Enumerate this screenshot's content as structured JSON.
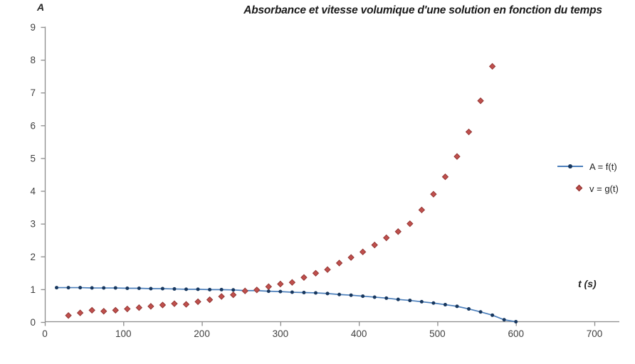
{
  "header": {
    "title": "Absorbance et vitesse volumique d'une solution en fonction du temps"
  },
  "axes": {
    "y_label": "A",
    "x_label": "t (s)"
  },
  "legend": {
    "entries": [
      {
        "label": "A = f(t)",
        "marker": "line-circle"
      },
      {
        "label": "v = g(t)",
        "marker": "diamond"
      }
    ]
  },
  "colors": {
    "background": "#ffffff",
    "axis": "#8c8c8c",
    "tick_text": "#3f3f3f",
    "title_text": "#1a1a1a",
    "series_a_line": "#4a7ebb",
    "series_a_marker": "#17375e",
    "series_v_fill": "#c0504d",
    "series_v_edge": "#943634"
  },
  "chart_data": {
    "type": "line",
    "title": "Absorbance et vitesse volumique d'une solution en fonction du temps",
    "xlabel": "t (s)",
    "ylabel": "A",
    "xlim": [
      0,
      700
    ],
    "ylim": [
      0,
      9
    ],
    "x_ticks": [
      0,
      100,
      200,
      300,
      400,
      500,
      600,
      700
    ],
    "y_ticks": [
      0,
      1,
      2,
      3,
      4,
      5,
      6,
      7,
      8,
      9
    ],
    "grid": false,
    "legend_position": "right",
    "series": [
      {
        "name": "A = f(t)",
        "type": "line",
        "marker": "circle",
        "points": [
          [
            15,
            1.05
          ],
          [
            30,
            1.05
          ],
          [
            45,
            1.05
          ],
          [
            60,
            1.04
          ],
          [
            75,
            1.04
          ],
          [
            90,
            1.04
          ],
          [
            105,
            1.03
          ],
          [
            120,
            1.03
          ],
          [
            135,
            1.02
          ],
          [
            150,
            1.02
          ],
          [
            165,
            1.01
          ],
          [
            180,
            1.0
          ],
          [
            195,
            1.0
          ],
          [
            210,
            0.99
          ],
          [
            225,
            0.99
          ],
          [
            240,
            0.98
          ],
          [
            255,
            0.96
          ],
          [
            270,
            0.96
          ],
          [
            285,
            0.94
          ],
          [
            300,
            0.93
          ],
          [
            315,
            0.91
          ],
          [
            330,
            0.9
          ],
          [
            345,
            0.89
          ],
          [
            360,
            0.87
          ],
          [
            375,
            0.84
          ],
          [
            390,
            0.82
          ],
          [
            405,
            0.79
          ],
          [
            420,
            0.76
          ],
          [
            435,
            0.73
          ],
          [
            450,
            0.69
          ],
          [
            465,
            0.66
          ],
          [
            480,
            0.62
          ],
          [
            495,
            0.58
          ],
          [
            510,
            0.53
          ],
          [
            525,
            0.48
          ],
          [
            540,
            0.4
          ],
          [
            555,
            0.31
          ],
          [
            570,
            0.21
          ],
          [
            585,
            0.07
          ],
          [
            600,
            0.01
          ]
        ]
      },
      {
        "name": "v = g(t)",
        "type": "scatter",
        "marker": "diamond",
        "points": [
          [
            30,
            0.2
          ],
          [
            45,
            0.28
          ],
          [
            60,
            0.36
          ],
          [
            75,
            0.33
          ],
          [
            90,
            0.36
          ],
          [
            105,
            0.4
          ],
          [
            120,
            0.44
          ],
          [
            135,
            0.48
          ],
          [
            150,
            0.52
          ],
          [
            165,
            0.56
          ],
          [
            180,
            0.54
          ],
          [
            195,
            0.62
          ],
          [
            210,
            0.68
          ],
          [
            225,
            0.78
          ],
          [
            240,
            0.83
          ],
          [
            255,
            0.95
          ],
          [
            270,
            0.98
          ],
          [
            285,
            1.08
          ],
          [
            300,
            1.16
          ],
          [
            315,
            1.21
          ],
          [
            330,
            1.36
          ],
          [
            345,
            1.49
          ],
          [
            360,
            1.6
          ],
          [
            375,
            1.8
          ],
          [
            390,
            1.97
          ],
          [
            405,
            2.14
          ],
          [
            420,
            2.35
          ],
          [
            435,
            2.57
          ],
          [
            450,
            2.76
          ],
          [
            465,
            3.0
          ],
          [
            480,
            3.42
          ],
          [
            495,
            3.9
          ],
          [
            510,
            4.43
          ],
          [
            525,
            5.05
          ],
          [
            540,
            5.8
          ],
          [
            555,
            6.75
          ],
          [
            570,
            7.8
          ]
        ]
      }
    ]
  }
}
